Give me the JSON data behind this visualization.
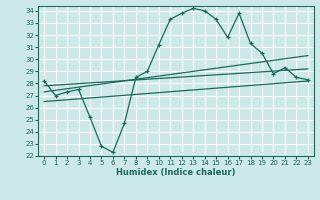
{
  "xlabel": "Humidex (Indice chaleur)",
  "bg_color": "#cce8e8",
  "line_color": "#1a6b5a",
  "grid_color": "#ffffff",
  "xlim": [
    -0.5,
    23.5
  ],
  "ylim": [
    22,
    34.4
  ],
  "xticks": [
    0,
    1,
    2,
    3,
    4,
    5,
    6,
    7,
    8,
    9,
    10,
    11,
    12,
    13,
    14,
    15,
    16,
    17,
    18,
    19,
    20,
    21,
    22,
    23
  ],
  "yticks": [
    22,
    23,
    24,
    25,
    26,
    27,
    28,
    29,
    30,
    31,
    32,
    33,
    34
  ],
  "curve1_x": [
    0,
    1,
    2,
    3,
    4,
    5,
    6,
    7,
    8,
    9,
    10,
    11,
    12,
    13,
    14,
    15,
    16,
    17,
    18,
    19,
    20,
    21,
    22,
    23
  ],
  "curve1_y": [
    28.2,
    27.0,
    27.3,
    27.5,
    25.2,
    22.8,
    22.3,
    24.7,
    28.5,
    29.0,
    31.2,
    33.3,
    33.8,
    34.2,
    34.0,
    33.3,
    31.8,
    33.8,
    31.3,
    30.5,
    28.8,
    29.3,
    28.5,
    28.3
  ],
  "curve2_x": [
    0,
    23
  ],
  "curve2_y": [
    27.8,
    29.2
  ],
  "curve3_x": [
    0,
    23
  ],
  "curve3_y": [
    27.3,
    30.3
  ],
  "curve4_x": [
    0,
    23
  ],
  "curve4_y": [
    26.5,
    28.2
  ]
}
